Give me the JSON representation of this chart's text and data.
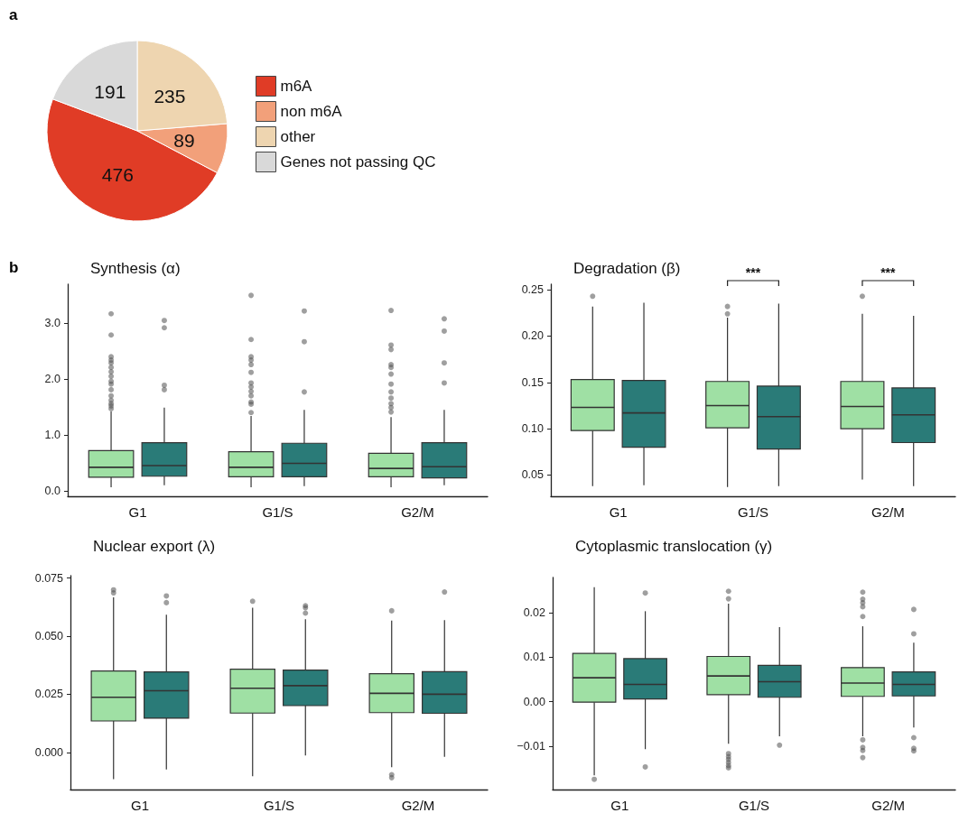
{
  "chart_data": [
    {
      "type": "pie",
      "annotations": [
        "a"
      ],
      "categories": [
        "m6A",
        "non m6A",
        "other",
        "Genes not passing QC"
      ],
      "values": [
        476,
        89,
        235,
        191
      ],
      "colors": [
        "#e03c26",
        "#f2a07a",
        "#eed5b0",
        "#d9d9d9"
      ],
      "data_labels": true,
      "legend": "right"
    },
    {
      "type": "box",
      "title": "Synthesis (α)",
      "annotations": [
        "b"
      ],
      "categories": [
        "G1",
        "G1/S",
        "G2/M"
      ],
      "ylim": [
        -0.1,
        3.7
      ],
      "yticks": [
        {
          "value": 0,
          "label": "0.0"
        },
        {
          "value": 1,
          "label": "1.0"
        },
        {
          "value": 2,
          "label": "2.0"
        },
        {
          "value": 3,
          "label": "3.0"
        }
      ],
      "grid": false,
      "legend": false,
      "series": [
        {
          "color": "#9fe0a4",
          "boxes": [
            {
              "low": 0.06,
              "q1": 0.24,
              "median": 0.42,
              "q3": 0.72,
              "high": 1.42,
              "outliers": [
                3.17,
                2.79,
                2.4,
                2.34,
                2.29,
                2.21,
                2.13,
                2.05,
                1.96,
                1.91,
                1.81,
                1.7,
                1.62,
                1.56,
                1.52,
                1.47
              ]
            },
            {
              "low": 0.06,
              "q1": 0.25,
              "median": 0.42,
              "q3": 0.7,
              "high": 1.34,
              "outliers": [
                3.5,
                2.71,
                2.4,
                2.34,
                2.26,
                2.12,
                1.93,
                1.86,
                1.78,
                1.7,
                1.59,
                1.55,
                1.4
              ]
            },
            {
              "low": 0.06,
              "q1": 0.25,
              "median": 0.4,
              "q3": 0.67,
              "high": 1.32,
              "outliers": [
                3.23,
                2.61,
                2.53,
                2.26,
                2.21,
                2.09,
                1.91,
                1.77,
                1.66,
                1.56,
                1.49,
                1.41
              ]
            }
          ]
        },
        {
          "color": "#2a7b78",
          "boxes": [
            {
              "low": 0.1,
              "q1": 0.26,
              "median": 0.45,
              "q3": 0.86,
              "high": 1.49,
              "outliers": [
                3.05,
                2.92,
                1.89,
                1.81
              ]
            },
            {
              "low": 0.08,
              "q1": 0.25,
              "median": 0.49,
              "q3": 0.85,
              "high": 1.45,
              "outliers": [
                3.22,
                2.67,
                1.77
              ]
            },
            {
              "low": 0.1,
              "q1": 0.23,
              "median": 0.43,
              "q3": 0.86,
              "high": 1.45,
              "outliers": [
                3.08,
                2.86,
                2.29,
                1.93
              ]
            }
          ]
        }
      ]
    },
    {
      "type": "box",
      "title": "Degradation (β)",
      "annotations": [
        "***",
        "***"
      ],
      "categories": [
        "G1",
        "G1/S",
        "G2/M"
      ],
      "ylim": [
        0.027,
        0.256
      ],
      "yticks": [
        {
          "value": 0.05,
          "label": "0.05"
        },
        {
          "value": 0.1,
          "label": "0.10"
        },
        {
          "value": 0.15,
          "label": "0.15"
        },
        {
          "value": 0.2,
          "label": "0.20"
        },
        0.25
      ],
      "grid": false,
      "legend": false,
      "series": [
        {
          "color": "#9fe0a4",
          "boxes": [
            {
              "low": 0.038,
              "q1": 0.098,
              "median": 0.123,
              "q3": 0.153,
              "high": 0.232,
              "outliers": [
                0.243
              ]
            },
            {
              "low": 0.037,
              "q1": 0.101,
              "median": 0.125,
              "q3": 0.151,
              "high": 0.22,
              "outliers": [
                0.232,
                0.224
              ]
            },
            {
              "low": 0.045,
              "q1": 0.1,
              "median": 0.124,
              "q3": 0.151,
              "high": 0.224,
              "outliers": [
                0.243
              ]
            }
          ]
        },
        {
          "color": "#2a7b78",
          "boxes": [
            {
              "low": 0.039,
              "q1": 0.08,
              "median": 0.117,
              "q3": 0.152,
              "high": 0.236
            },
            {
              "low": 0.038,
              "q1": 0.078,
              "median": 0.113,
              "q3": 0.146,
              "high": 0.235
            },
            {
              "low": 0.038,
              "q1": 0.085,
              "median": 0.115,
              "q3": 0.144,
              "high": 0.222
            }
          ]
        }
      ]
    },
    {
      "type": "box",
      "title": "Nuclear export (λ)",
      "categories": [
        "G1",
        "G1/S",
        "G2/M"
      ],
      "ylim": [
        -0.016,
        0.076
      ],
      "yticks": [
        {
          "value": 0,
          "label": "0.000"
        },
        0.025,
        {
          "value": 0.05,
          "label": "0.050"
        },
        0.075
      ],
      "grid": false,
      "legend": false,
      "series": [
        {
          "color": "#9fe0a4",
          "boxes": [
            {
              "low": -0.0115,
              "q1": 0.0135,
              "median": 0.0237,
              "q3": 0.035,
              "high": 0.0667,
              "outliers": [
                0.0699,
                0.0686
              ]
            },
            {
              "low": -0.0103,
              "q1": 0.0169,
              "median": 0.0276,
              "q3": 0.0358,
              "high": 0.0622,
              "outliers": [
                0.065
              ]
            },
            {
              "low": -0.0064,
              "q1": 0.0171,
              "median": 0.0254,
              "q3": 0.0338,
              "high": 0.0567,
              "outliers": [
                0.0609,
                -0.0096,
                -0.0109
              ]
            }
          ]
        },
        {
          "color": "#2a7b78",
          "boxes": [
            {
              "low": -0.0074,
              "q1": 0.0147,
              "median": 0.0265,
              "q3": 0.0346,
              "high": 0.0592,
              "outliers": [
                0.0673,
                0.0644
              ]
            },
            {
              "low": -0.0013,
              "q1": 0.0201,
              "median": 0.0287,
              "q3": 0.0354,
              "high": 0.0573,
              "outliers": [
                0.0631,
                0.0622,
                0.0599
              ]
            },
            {
              "low": -0.0019,
              "q1": 0.0168,
              "median": 0.025,
              "q3": 0.0347,
              "high": 0.0569,
              "outliers": [
                0.069
              ]
            }
          ]
        }
      ]
    },
    {
      "type": "box",
      "title": "Cytoplasmic translocation (γ)",
      "categories": [
        "G1",
        "G1/S",
        "G2/M"
      ],
      "ylim": [
        -0.0198,
        0.028
      ],
      "yticks": [
        {
          "value": -0.01,
          "label": "−0.01"
        },
        {
          "value": 0,
          "label": "0.00"
        },
        0.01,
        0.02
      ],
      "grid": false,
      "legend": false,
      "series": [
        {
          "color": "#9fe0a4",
          "boxes": [
            {
              "low": -0.0166,
              "q1": -0.0001,
              "median": 0.0054,
              "q3": 0.0109,
              "high": 0.0258,
              "outliers": [
                -0.0175
              ]
            },
            {
              "low": -0.0095,
              "q1": 0.0016,
              "median": 0.0058,
              "q3": 0.0102,
              "high": 0.0221,
              "outliers": [
                0.0249,
                0.0232,
                -0.0117,
                -0.0124,
                -0.013,
                -0.0137,
                -0.0144,
                -0.0149
              ]
            },
            {
              "low": -0.0078,
              "q1": 0.0012,
              "median": 0.0042,
              "q3": 0.0077,
              "high": 0.017,
              "outliers": [
                0.0247,
                0.0231,
                0.0223,
                0.0214,
                0.0192,
                -0.0086,
                -0.0103,
                -0.011,
                -0.0126
              ]
            }
          ]
        },
        {
          "color": "#2a7b78",
          "boxes": [
            {
              "low": -0.0107,
              "q1": 0.0006,
              "median": 0.0039,
              "q3": 0.0097,
              "high": 0.0204,
              "outliers": [
                0.0245,
                -0.0147
              ]
            },
            {
              "low": -0.0078,
              "q1": 0.001,
              "median": 0.0045,
              "q3": 0.0082,
              "high": 0.0168,
              "outliers": [
                -0.0098
              ]
            },
            {
              "low": -0.0058,
              "q1": 0.0013,
              "median": 0.0039,
              "q3": 0.0067,
              "high": 0.0133,
              "outliers": [
                0.0208,
                0.0153,
                -0.0081,
                -0.0105,
                -0.0111
              ]
            }
          ]
        }
      ]
    }
  ]
}
